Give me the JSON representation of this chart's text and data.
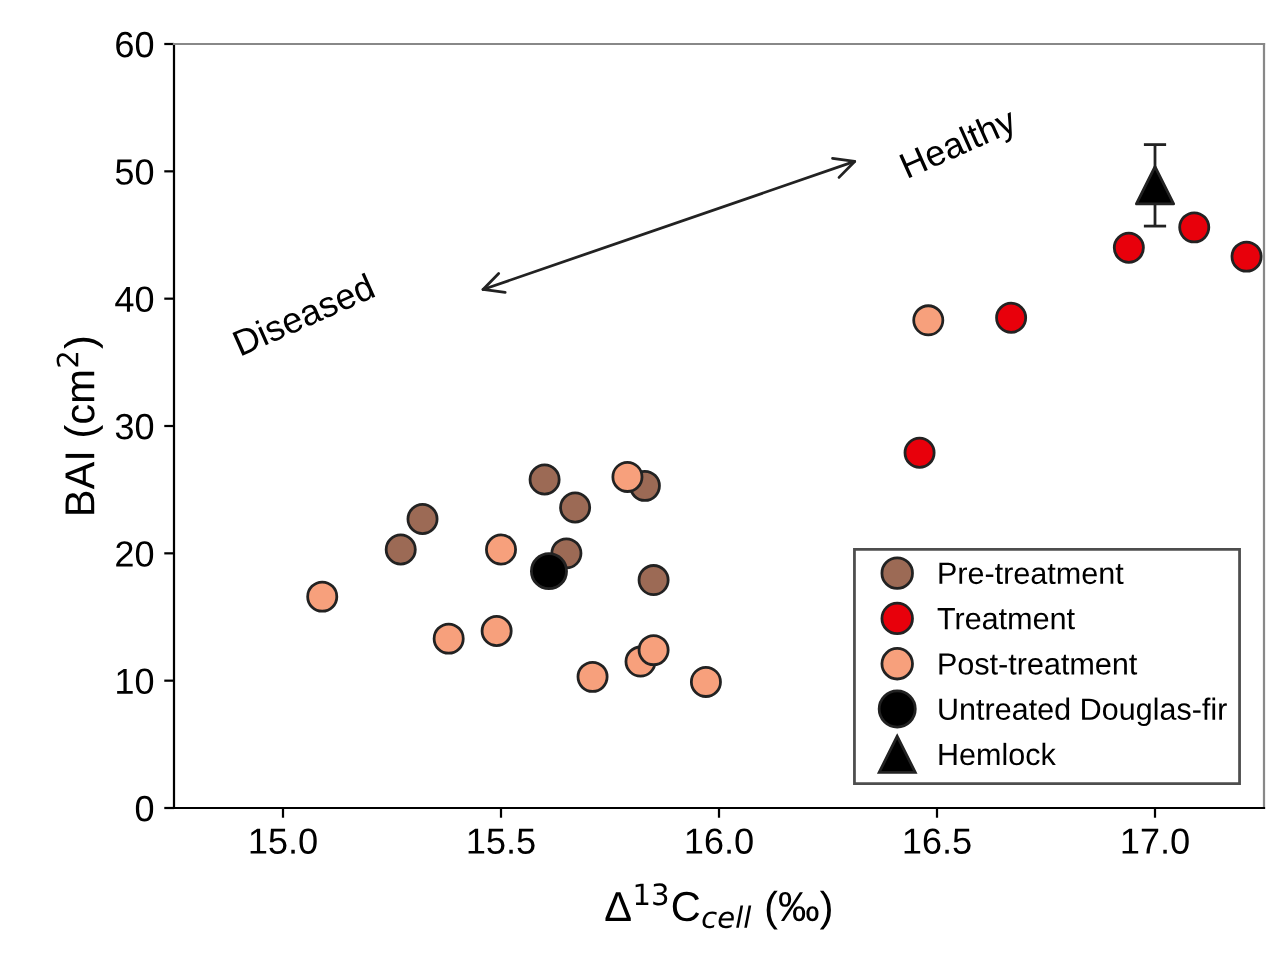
{
  "chart_data": {
    "type": "scatter",
    "xlabel": "Δ$^{13}$C$_{cell}$ (‰)",
    "ylabel": "BAI (cm$^{2}$)",
    "xlim": [
      14.75,
      17.25
    ],
    "ylim": [
      0,
      60
    ],
    "xticks": [
      {
        "value": 15,
        "label": "15.0"
      },
      {
        "value": 15.5,
        "label": "15.5"
      },
      {
        "value": 16,
        "label": "16.0"
      },
      {
        "value": 16.5,
        "label": "16.5"
      },
      {
        "value": 17,
        "label": "17.0"
      }
    ],
    "yticks": [
      0,
      10,
      20,
      30,
      40,
      50,
      60
    ],
    "grid": false,
    "legend": "bottom right",
    "annotations": [
      "Diseased",
      "Healthy"
    ],
    "series": [
      {
        "name": "Pre-treatment",
        "color": "#9c6a55",
        "marker": "circle",
        "x": [
          15.27,
          15.32,
          15.6,
          15.67,
          15.65,
          15.83,
          15.85
        ],
        "values": [
          20.3,
          22.7,
          25.8,
          23.6,
          20.0,
          25.3,
          17.9
        ]
      },
      {
        "name": "Treatment",
        "color": "#e8000b",
        "marker": "circle",
        "x": [
          16.46,
          16.67,
          16.94,
          17.09,
          17.21
        ],
        "values": [
          27.9,
          38.5,
          44.0,
          45.6,
          43.3
        ]
      },
      {
        "name": "Post-treatment",
        "color": "#f7a07c",
        "marker": "circle",
        "x": [
          15.09,
          15.38,
          15.49,
          15.5,
          15.71,
          15.79,
          15.82,
          15.85,
          15.97,
          16.48
        ],
        "values": [
          16.6,
          13.3,
          13.9,
          20.3,
          10.3,
          26.0,
          11.5,
          12.4,
          9.9,
          38.3
        ]
      },
      {
        "name": "Untreated Douglas-fir",
        "color": "#000000",
        "marker": "circle",
        "x": [
          15.61
        ],
        "values": [
          18.6
        ]
      },
      {
        "name": "Hemlock",
        "color": "#000000",
        "marker": "triangle",
        "x": [
          17.0
        ],
        "values": [
          48.9
        ],
        "errors": [
          3.2
        ]
      }
    ]
  }
}
